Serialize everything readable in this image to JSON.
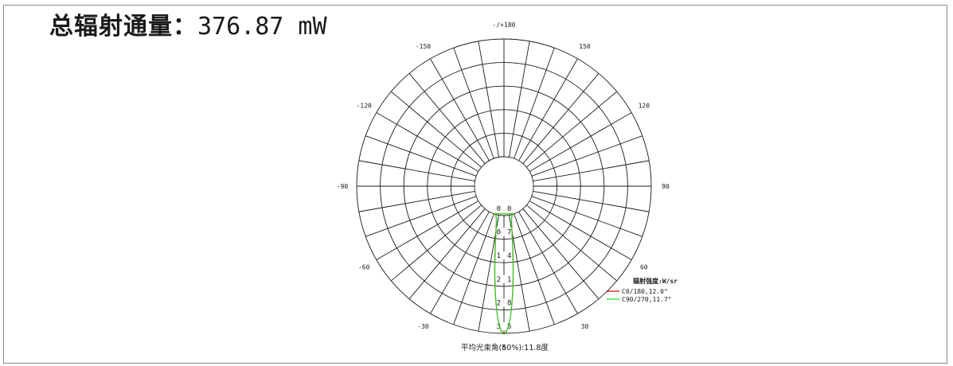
{
  "header": {
    "title_label": "总辐射通量：",
    "title_value": "376.87 mW"
  },
  "chart_data": {
    "type": "polar-line",
    "angle_ticks": [
      {
        "angle": 180,
        "label": "-/+180"
      },
      {
        "angle": 150,
        "label": "150"
      },
      {
        "angle": -150,
        "label": "-150"
      },
      {
        "angle": 120,
        "label": "120"
      },
      {
        "angle": -120,
        "label": "-120"
      },
      {
        "angle": 90,
        "label": "90"
      },
      {
        "angle": -90,
        "label": "-90"
      },
      {
        "angle": 60,
        "label": "60"
      },
      {
        "angle": -60,
        "label": "-60"
      },
      {
        "angle": 30,
        "label": "30"
      },
      {
        "angle": -30,
        "label": "-30"
      },
      {
        "angle": 0,
        "label": "0"
      }
    ],
    "radial_ticks": [
      {
        "value": 0.0,
        "label": "0.0"
      },
      {
        "value": 0.7,
        "label": "0.7"
      },
      {
        "value": 1.4,
        "label": "1.4"
      },
      {
        "value": 2.1,
        "label": "2.1"
      },
      {
        "value": 2.8,
        "label": "2.8"
      },
      {
        "value": 3.5,
        "label": "3.5"
      }
    ],
    "radial_max": 3.5,
    "legend_title": "辐射强度:W/sr",
    "series": [
      {
        "name": "C0/180,12.0°",
        "color": "#c00000",
        "peak": 3.5,
        "beam_angle_deg": 12.0
      },
      {
        "name": "C90/270,11.7°",
        "color": "#22dd22",
        "peak": 3.52,
        "beam_angle_deg": 11.7
      }
    ],
    "footer": "平均光束角(50%):11.8度",
    "legend_position": "bottom-right"
  },
  "colors": {
    "grid": "#1a1a1a",
    "text": "#1a1a1a"
  }
}
